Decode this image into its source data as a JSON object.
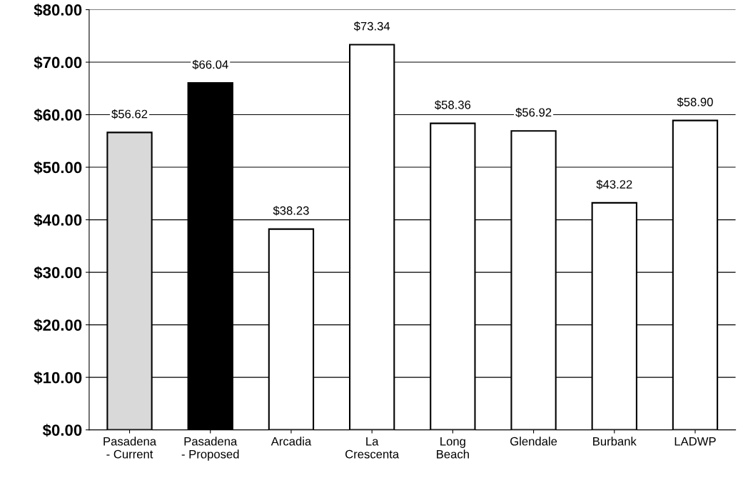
{
  "chart_data": {
    "type": "bar",
    "categories": [
      "Pasadena\n- Current",
      "Pasadena\n- Proposed",
      "Arcadia",
      "La\nCrescenta",
      "Long\nBeach",
      "Glendale",
      "Burbank",
      "LADWP"
    ],
    "values": [
      56.62,
      66.04,
      38.23,
      73.34,
      58.36,
      56.92,
      43.22,
      58.9
    ],
    "value_labels": [
      "$56.62",
      "$66.04",
      "$38.23",
      "$73.34",
      "$58.36",
      "$56.92",
      "$43.22",
      "$58.90"
    ],
    "colors": [
      "#d9d9d9",
      "#000000",
      "#ffffff",
      "#ffffff",
      "#ffffff",
      "#ffffff",
      "#ffffff",
      "#ffffff"
    ],
    "ylim": [
      0,
      80
    ],
    "yticks": [
      {
        "value": 0,
        "label": "$0.00"
      },
      {
        "value": 10,
        "label": "$10.00"
      },
      {
        "value": 20,
        "label": "$20.00"
      },
      {
        "value": 30,
        "label": "$30.00"
      },
      {
        "value": 40,
        "label": "$40.00"
      },
      {
        "value": 50,
        "label": "$50.00"
      },
      {
        "value": 60,
        "label": "$60.00"
      },
      {
        "value": 70,
        "label": "$70.00"
      },
      {
        "value": 80,
        "label": "$80.00"
      }
    ],
    "grid": "y",
    "legend": false
  }
}
